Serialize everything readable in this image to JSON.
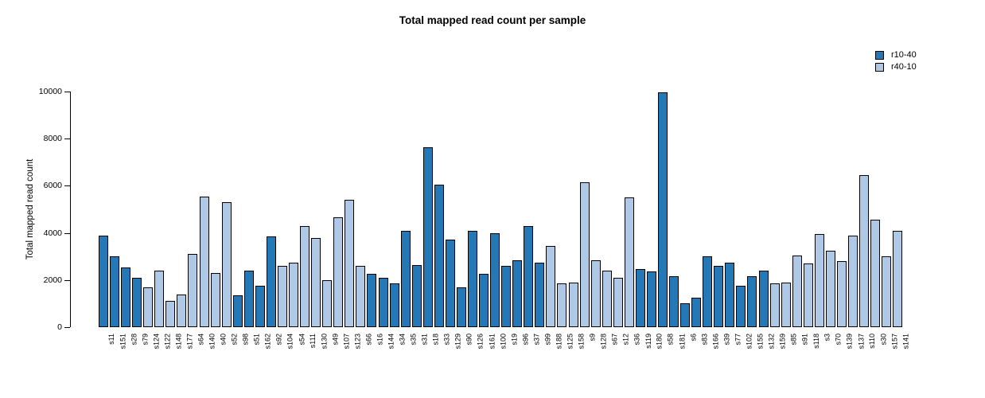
{
  "title": "Total mapped read count per sample",
  "chart_data": {
    "type": "bar",
    "title": "Total mapped read count per sample",
    "xlabel": "",
    "ylabel": "Total mapped read count",
    "ylim": [
      0,
      10000
    ],
    "yticks": [
      0,
      2000,
      4000,
      6000,
      8000,
      10000
    ],
    "grid": false,
    "legend_position": "top-right",
    "groups": [
      "r10-40",
      "r40-10"
    ],
    "group_colors": {
      "r10-40": "#2378b5",
      "r40-10": "#aec8e6"
    },
    "categories": [
      "s11",
      "s151",
      "s28",
      "s79",
      "s124",
      "s122",
      "s148",
      "s177",
      "s64",
      "s140",
      "s40",
      "s52",
      "s98",
      "s51",
      "s162",
      "s92",
      "s104",
      "s54",
      "s111",
      "s130",
      "s49",
      "s107",
      "s123",
      "s66",
      "s16",
      "s144",
      "s34",
      "s35",
      "s31",
      "s18",
      "s33",
      "s129",
      "s90",
      "s126",
      "s161",
      "s100",
      "s19",
      "s96",
      "s37",
      "s99",
      "s188",
      "s125",
      "s158",
      "s9",
      "s128",
      "s67",
      "s12",
      "s36",
      "s119",
      "s180",
      "s58",
      "s181",
      "s6",
      "s83",
      "s166",
      "s39",
      "s77",
      "s102",
      "s155",
      "s132",
      "s159",
      "s85",
      "s91",
      "s118",
      "s3",
      "s70",
      "s139",
      "s137",
      "s110",
      "s30",
      "s157",
      "s141"
    ],
    "values": [
      3900,
      3000,
      2550,
      2100,
      1700,
      2400,
      1100,
      1400,
      3100,
      5550,
      2300,
      5300,
      1350,
      2400,
      1750,
      3850,
      2600,
      2750,
      4300,
      3800,
      2000,
      4650,
      5400,
      2600,
      2250,
      2100,
      1850,
      4100,
      2650,
      7650,
      6050,
      3700,
      1700,
      4100,
      2250,
      4000,
      2600,
      2850,
      4300,
      2750,
      3450,
      1850,
      1900,
      6150,
      2850,
      2400,
      2100,
      5500,
      2450,
      2350,
      9950,
      2150,
      1000,
      1250,
      3000,
      2600,
      2750,
      1750,
      2150,
      2400,
      1850,
      1900,
      3050,
      2700,
      3950,
      3250,
      2800,
      3900,
      6450,
      4550,
      3000,
      4100
    ],
    "bar_group": [
      "r10-40",
      "r10-40",
      "r10-40",
      "r10-40",
      "r40-10",
      "r40-10",
      "r40-10",
      "r40-10",
      "r40-10",
      "r40-10",
      "r40-10",
      "r40-10",
      "r10-40",
      "r10-40",
      "r10-40",
      "r10-40",
      "r40-10",
      "r40-10",
      "r40-10",
      "r40-10",
      "r40-10",
      "r40-10",
      "r40-10",
      "r40-10",
      "r10-40",
      "r10-40",
      "r10-40",
      "r10-40",
      "r10-40",
      "r10-40",
      "r10-40",
      "r10-40",
      "r10-40",
      "r10-40",
      "r10-40",
      "r10-40",
      "r10-40",
      "r10-40",
      "r10-40",
      "r10-40",
      "r40-10",
      "r40-10",
      "r40-10",
      "r40-10",
      "r40-10",
      "r40-10",
      "r40-10",
      "r40-10",
      "r10-40",
      "r10-40",
      "r10-40",
      "r10-40",
      "r10-40",
      "r10-40",
      "r10-40",
      "r10-40",
      "r10-40",
      "r10-40",
      "r10-40",
      "r10-40",
      "r40-10",
      "r40-10",
      "r40-10",
      "r40-10",
      "r40-10",
      "r40-10",
      "r40-10",
      "r40-10",
      "r40-10",
      "r40-10",
      "r40-10",
      "r40-10"
    ]
  }
}
